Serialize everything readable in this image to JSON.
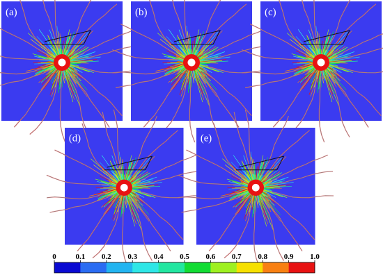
{
  "panels": [
    {
      "label": "(a)"
    },
    {
      "label": "(b)"
    },
    {
      "label": "(c)"
    },
    {
      "label": "(d)"
    },
    {
      "label": "(e)"
    }
  ],
  "colorbar": {
    "ticks": [
      "0",
      "0.1",
      "0.2",
      "0.3",
      "0.4",
      "0.5",
      "0.6",
      "0.7",
      "0.8",
      "0.9",
      "1.0"
    ],
    "colors": [
      "#0a0ad2",
      "#2a6cf2",
      "#22b4f0",
      "#2ee6e6",
      "#22e6a0",
      "#12dc34",
      "#9ef020",
      "#f6e000",
      "#f88012",
      "#e81212"
    ]
  }
}
